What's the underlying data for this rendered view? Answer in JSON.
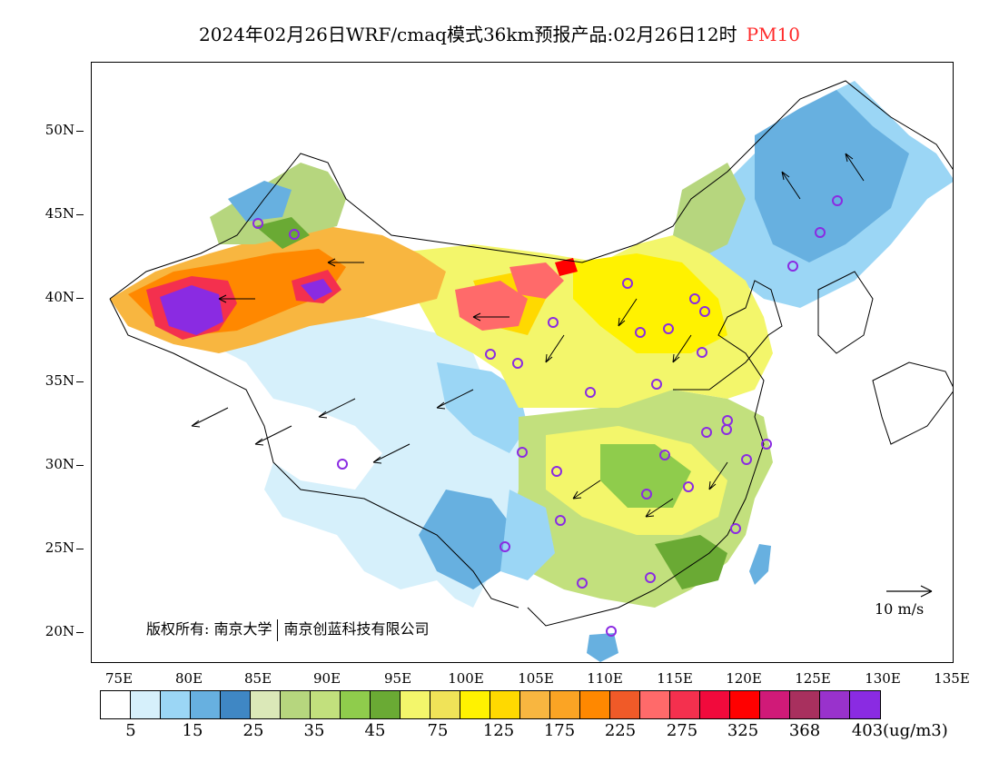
{
  "title": {
    "main": "2024年02月26日WRF/cmaq模式36km预报产品:02月26日12时",
    "variable": "PM10"
  },
  "map": {
    "copyright": "版权所有: 南京大学",
    "copyright_company": "南京创蓝科技有限公司",
    "scale_label": "10 m/s",
    "lat_labels": [
      "50N",
      "45N",
      "40N",
      "35N",
      "30N",
      "25N",
      "20N"
    ],
    "lon_labels": [
      "75E",
      "80E",
      "85E",
      "90E",
      "95E",
      "100E",
      "105E",
      "110E",
      "115E",
      "120E",
      "125E",
      "130E",
      "135E"
    ]
  },
  "legend": {
    "colors": [
      "#ffffff",
      "#d6f0fb",
      "#9bd6f5",
      "#67b0e0",
      "#3f87c4",
      "#dbe8b8",
      "#b6d67e",
      "#c2e07d",
      "#8fcc4c",
      "#6aaa34",
      "#f3f66b",
      "#f0e358",
      "#fff200",
      "#ffd900",
      "#f8b640",
      "#fba424",
      "#ff8800",
      "#f05a28",
      "#ff6a6a",
      "#f4304e",
      "#f10a3c",
      "#ff0000",
      "#d01a78",
      "#a8305e",
      "#9932cc",
      "#8a2be2"
    ],
    "labels": [
      "5",
      "15",
      "25",
      "35",
      "45",
      "75",
      "125",
      "175",
      "225",
      "275",
      "325",
      "368",
      "403"
    ],
    "unit": "(ug/m3)"
  }
}
